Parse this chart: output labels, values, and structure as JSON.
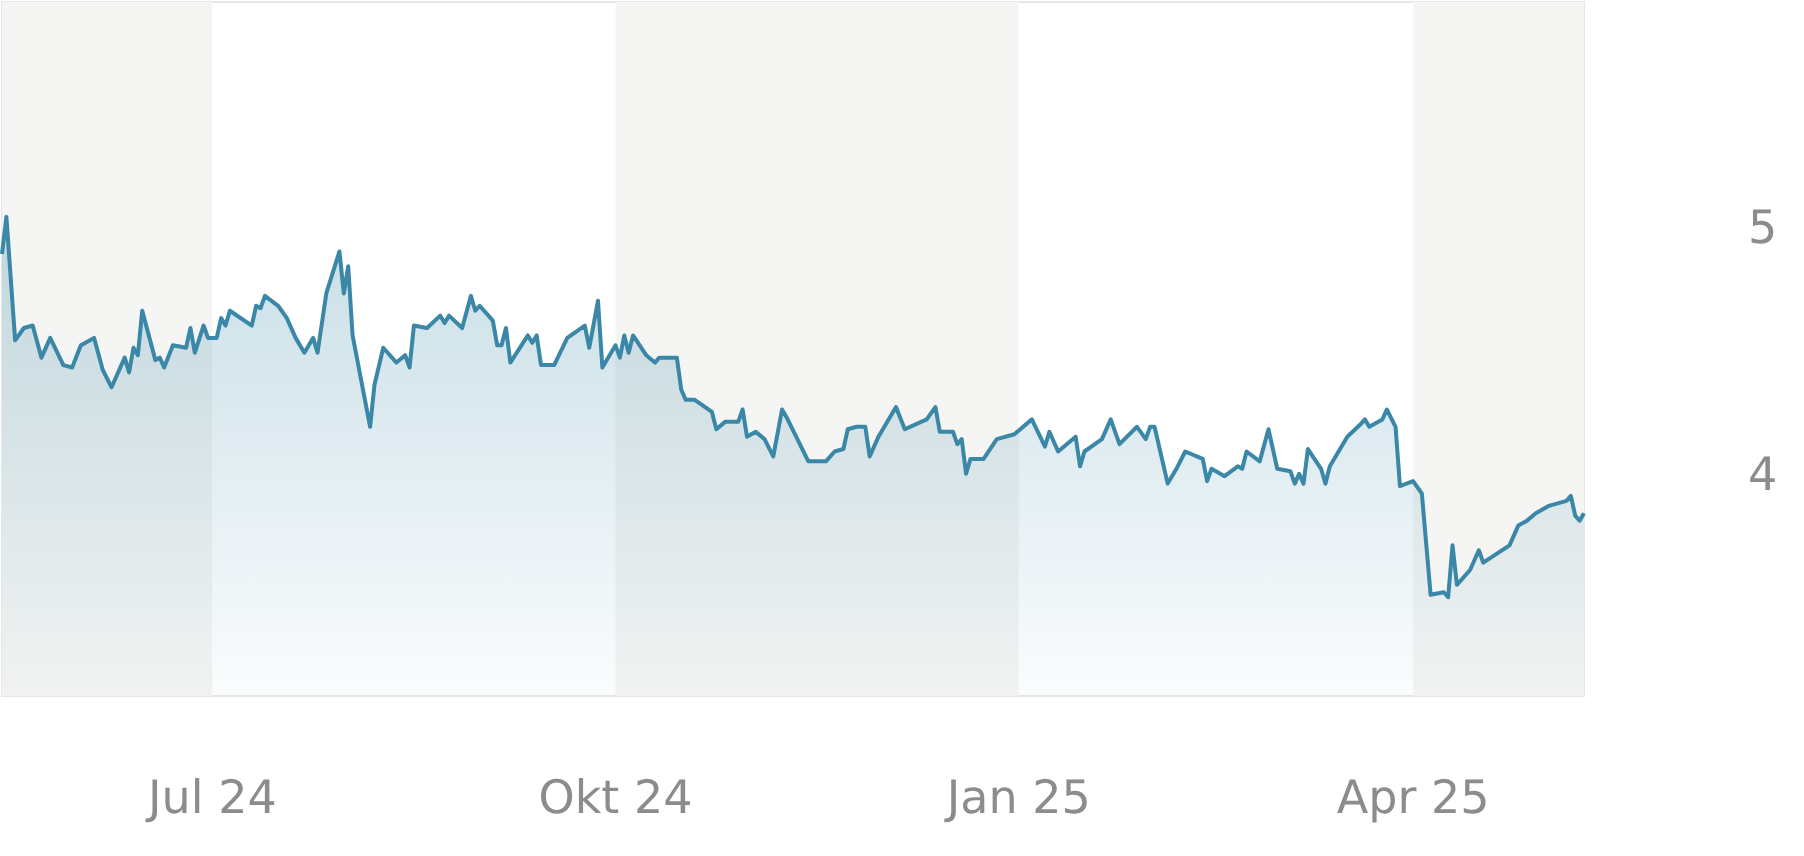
{
  "chart_data": {
    "type": "area",
    "color": "#3a87a8",
    "x": [
      "2024-05-14",
      "2024-05-15",
      "2024-05-17",
      "2024-05-19",
      "2024-05-21",
      "2024-05-23",
      "2024-05-25",
      "2024-05-28",
      "2024-05-30",
      "2024-06-01",
      "2024-06-04",
      "2024-06-06",
      "2024-06-08",
      "2024-06-11",
      "2024-06-12",
      "2024-06-13",
      "2024-06-14",
      "2024-06-15",
      "2024-06-18",
      "2024-06-19",
      "2024-06-20",
      "2024-06-22",
      "2024-06-25",
      "2024-06-26",
      "2024-06-27",
      "2024-06-29",
      "2024-06-30",
      "2024-07-02",
      "2024-07-03",
      "2024-07-04",
      "2024-07-05",
      "2024-07-10",
      "2024-07-11",
      "2024-07-12",
      "2024-07-13",
      "2024-07-16",
      "2024-07-18",
      "2024-07-20",
      "2024-07-22",
      "2024-07-24",
      "2024-07-25",
      "2024-07-27",
      "2024-07-30",
      "2024-07-31",
      "2024-08-01",
      "2024-08-02",
      "2024-08-06",
      "2024-08-07",
      "2024-08-09",
      "2024-08-12",
      "2024-08-14",
      "2024-08-15",
      "2024-08-16",
      "2024-08-19",
      "2024-08-22",
      "2024-08-23",
      "2024-08-24",
      "2024-08-27",
      "2024-08-29",
      "2024-08-30",
      "2024-08-31",
      "2024-09-03",
      "2024-09-04",
      "2024-09-05",
      "2024-09-06",
      "2024-09-07",
      "2024-09-11",
      "2024-09-12",
      "2024-09-13",
      "2024-09-14",
      "2024-09-17",
      "2024-09-20",
      "2024-09-24",
      "2024-09-25",
      "2024-09-27",
      "2024-09-28",
      "2024-10-01",
      "2024-10-02",
      "2024-10-03",
      "2024-10-04",
      "2024-10-05",
      "2024-10-08",
      "2024-10-10",
      "2024-10-11",
      "2024-10-15",
      "2024-10-16",
      "2024-10-17",
      "2024-10-19",
      "2024-10-23",
      "2024-10-24",
      "2024-10-26",
      "2024-10-29",
      "2024-10-30",
      "2024-10-31",
      "2024-11-02",
      "2024-11-04",
      "2024-11-06",
      "2024-11-08",
      "2024-11-09",
      "2024-11-14",
      "2024-11-18",
      "2024-11-20",
      "2024-11-22",
      "2024-11-23",
      "2024-11-25",
      "2024-11-27",
      "2024-11-28",
      "2024-11-30",
      "2024-12-04",
      "2024-12-06",
      "2024-12-11",
      "2024-12-13",
      "2024-12-14",
      "2024-12-17",
      "2024-12-18",
      "2024-12-19",
      "2024-12-20",
      "2024-12-21",
      "2024-12-24",
      "2024-12-27",
      "2024-12-31",
      "2025-01-04",
      "2025-01-07",
      "2025-01-08",
      "2025-01-10",
      "2025-01-14",
      "2025-01-15",
      "2025-01-16",
      "2025-01-20",
      "2025-01-22",
      "2025-01-24",
      "2025-01-28",
      "2025-01-30",
      "2025-01-31",
      "2025-02-01",
      "2025-02-04",
      "2025-02-06",
      "2025-02-08",
      "2025-02-12",
      "2025-02-13",
      "2025-02-14",
      "2025-02-17",
      "2025-02-20",
      "2025-02-21",
      "2025-02-22",
      "2025-02-25",
      "2025-02-27",
      "2025-03-01",
      "2025-03-04",
      "2025-03-05",
      "2025-03-06",
      "2025-03-07",
      "2025-03-08",
      "2025-03-11",
      "2025-03-12",
      "2025-03-13",
      "2025-03-17",
      "2025-03-20",
      "2025-03-21",
      "2025-03-22",
      "2025-03-25",
      "2025-03-26",
      "2025-03-28",
      "2025-03-29",
      "2025-04-01",
      "2025-04-03",
      "2025-04-05",
      "2025-04-08",
      "2025-04-09",
      "2025-04-10",
      "2025-04-11",
      "2025-04-14",
      "2025-04-16",
      "2025-04-17",
      "2025-04-23",
      "2025-04-25",
      "2025-04-27",
      "2025-04-29",
      "2025-05-02",
      "2025-05-06",
      "2025-05-07",
      "2025-05-08",
      "2025-05-09",
      "2025-05-10"
    ],
    "values": [
      4.9,
      5.05,
      4.55,
      4.6,
      4.61,
      4.48,
      4.56,
      4.45,
      4.44,
      4.53,
      4.56,
      4.43,
      4.36,
      4.48,
      4.42,
      4.52,
      4.49,
      4.67,
      4.47,
      4.48,
      4.44,
      4.53,
      4.52,
      4.6,
      4.5,
      4.61,
      4.56,
      4.56,
      4.64,
      4.61,
      4.67,
      4.61,
      4.69,
      4.68,
      4.73,
      4.69,
      4.64,
      4.56,
      4.5,
      4.56,
      4.5,
      4.74,
      4.91,
      4.74,
      4.85,
      4.57,
      4.2,
      4.37,
      4.52,
      4.46,
      4.49,
      4.44,
      4.61,
      4.6,
      4.65,
      4.62,
      4.65,
      4.6,
      4.73,
      4.67,
      4.69,
      4.63,
      4.53,
      4.53,
      4.6,
      4.46,
      4.57,
      4.54,
      4.57,
      4.45,
      4.45,
      4.56,
      4.61,
      4.52,
      4.71,
      4.44,
      4.53,
      4.48,
      4.57,
      4.5,
      4.57,
      4.49,
      4.46,
      4.48,
      4.48,
      4.35,
      4.31,
      4.31,
      4.26,
      4.19,
      4.22,
      4.22,
      4.27,
      4.16,
      4.18,
      4.15,
      4.08,
      4.27,
      4.24,
      4.06,
      4.06,
      4.1,
      4.11,
      4.19,
      4.2,
      4.2,
      4.08,
      4.16,
      4.28,
      4.19,
      4.23,
      4.28,
      4.18,
      4.18,
      4.13,
      4.15,
      4.01,
      4.07,
      4.07,
      4.15,
      4.17,
      4.23,
      4.12,
      4.18,
      4.1,
      4.16,
      4.04,
      4.1,
      4.15,
      4.23,
      4.13,
      4.2,
      4.15,
      4.2,
      4.2,
      3.97,
      4.03,
      4.1,
      4.07,
      3.98,
      4.03,
      4.0,
      4.04,
      4.03,
      4.1,
      4.06,
      4.19,
      4.03,
      4.02,
      3.97,
      4.01,
      3.97,
      4.11,
      4.03,
      3.97,
      4.04,
      4.16,
      4.21,
      4.23,
      4.2,
      4.23,
      4.27,
      4.2,
      3.96,
      3.98,
      3.93,
      3.52,
      3.53,
      3.51,
      3.72,
      3.56,
      3.62,
      3.7,
      3.65,
      3.72,
      3.8,
      3.82,
      3.85,
      3.88,
      3.9,
      3.92,
      3.84,
      3.82,
      3.85
    ],
    "xlim": [
      "2024-05-14",
      "2025-05-10"
    ],
    "xticks": [
      {
        "value": "2024-07-01",
        "label": "Jul 24"
      },
      {
        "value": "2024-10-01",
        "label": "Okt 24"
      },
      {
        "value": "2025-01-01",
        "label": "Jan 25"
      },
      {
        "value": "2025-04-01",
        "label": "Apr 25"
      }
    ],
    "ylim": [
      3.11,
      5.92
    ],
    "yticks": [
      4,
      5
    ],
    "bands": [
      {
        "axis": "x",
        "from": "2024-05-14",
        "to": "2024-07-01",
        "color": "#f5f5f3"
      },
      {
        "axis": "x",
        "from": "2024-10-01",
        "to": "2025-01-01",
        "color": "#f5f5f3"
      },
      {
        "axis": "x",
        "from": "2025-04-01",
        "to": "2025-05-10",
        "color": "#f5f5f3"
      }
    ]
  }
}
